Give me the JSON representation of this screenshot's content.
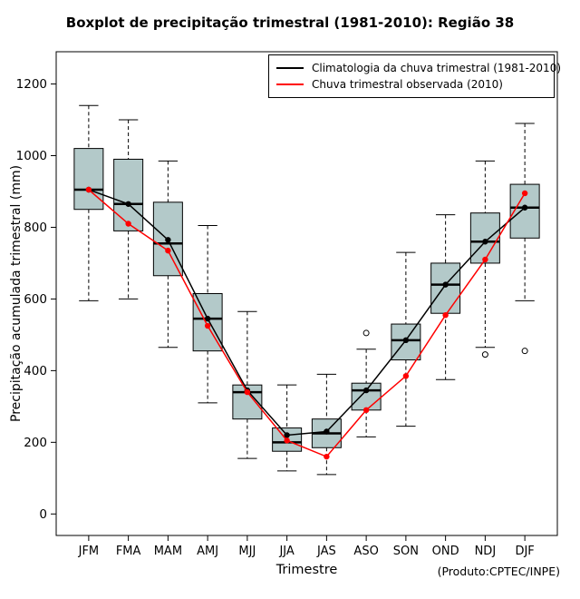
{
  "chart_data": {
    "type": "boxplot",
    "title": "Boxplot de precipitação trimestral (1981-2010): Região 38",
    "xlabel": "Trimestre",
    "ylabel": "Precipitação acumulada trimestral (mm)",
    "footnote": "(Produto:CPTEC/INPE)",
    "categories": [
      "JFM",
      "FMA",
      "MAM",
      "AMJ",
      "MJJ",
      "JJA",
      "JAS",
      "ASO",
      "SON",
      "OND",
      "NDJ",
      "DJF"
    ],
    "yticks": [
      0,
      200,
      400,
      600,
      800,
      1000,
      1200
    ],
    "ylim": [
      -60,
      1290
    ],
    "grid": false,
    "legend_position": "top-right",
    "box_fill": "#b3c9c9",
    "box_stroke": "#000000",
    "boxes": [
      {
        "low": 595,
        "q1": 850,
        "med": 905,
        "q3": 1020,
        "high": 1140,
        "out": []
      },
      {
        "low": 600,
        "q1": 790,
        "med": 865,
        "q3": 990,
        "high": 1100,
        "out": []
      },
      {
        "low": 465,
        "q1": 665,
        "med": 755,
        "q3": 870,
        "high": 985,
        "out": []
      },
      {
        "low": 310,
        "q1": 455,
        "med": 545,
        "q3": 615,
        "high": 805,
        "out": []
      },
      {
        "low": 155,
        "q1": 265,
        "med": 340,
        "q3": 360,
        "high": 565,
        "out": []
      },
      {
        "low": 120,
        "q1": 175,
        "med": 200,
        "q3": 240,
        "high": 360,
        "out": []
      },
      {
        "low": 110,
        "q1": 185,
        "med": 225,
        "q3": 265,
        "high": 390,
        "out": []
      },
      {
        "low": 215,
        "q1": 290,
        "med": 345,
        "q3": 365,
        "high": 460,
        "out": [
          505
        ]
      },
      {
        "low": 245,
        "q1": 430,
        "med": 485,
        "q3": 530,
        "high": 730,
        "out": []
      },
      {
        "low": 375,
        "q1": 560,
        "med": 640,
        "q3": 700,
        "high": 835,
        "out": []
      },
      {
        "low": 465,
        "q1": 700,
        "med": 760,
        "q3": 840,
        "high": 985,
        "out": [
          445
        ]
      },
      {
        "low": 595,
        "q1": 770,
        "med": 855,
        "q3": 920,
        "high": 1090,
        "out": [
          455
        ]
      }
    ],
    "series": [
      {
        "name": "Climatologia da chuva trimestral (1981-2010)",
        "color": "#000000",
        "values": [
          905,
          865,
          765,
          545,
          345,
          220,
          230,
          345,
          485,
          640,
          760,
          855
        ]
      },
      {
        "name": "Chuva trimestral observada (2010)",
        "color": "#ff0000",
        "values": [
          905,
          810,
          735,
          525,
          340,
          205,
          160,
          290,
          385,
          555,
          710,
          895
        ]
      }
    ]
  }
}
